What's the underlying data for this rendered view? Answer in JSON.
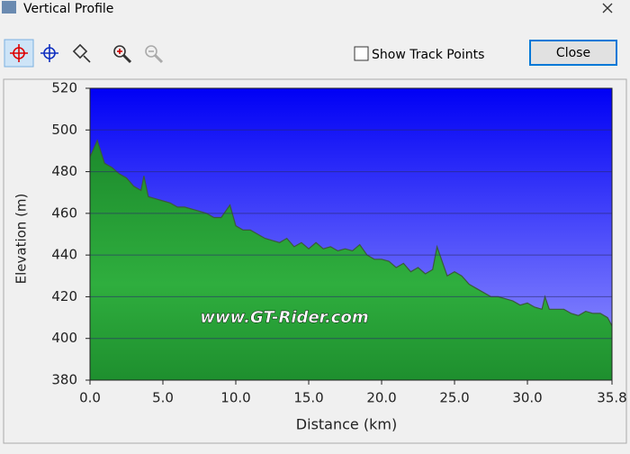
{
  "window": {
    "title": "Vertical Profile",
    "checkbox_label": "Show Track Points",
    "button_label": "Close"
  },
  "chart_data": {
    "type": "area",
    "x_label": "Distance  (km)",
    "y_label": "Elevation (m)",
    "annotation": "www.GT-Rider.com",
    "x": [
      0,
      0.5,
      1,
      1.5,
      2,
      2.5,
      3,
      3.5,
      3.7,
      4,
      4.5,
      5,
      5.5,
      6,
      6.5,
      7,
      7.5,
      8,
      8.5,
      9,
      9.6,
      10,
      10.5,
      11,
      11.5,
      12,
      12.5,
      13,
      13.5,
      14,
      14.5,
      15,
      15.5,
      16,
      16.5,
      17,
      17.5,
      18,
      18.5,
      19,
      19.5,
      20,
      20.5,
      21,
      21.5,
      22,
      22.5,
      23,
      23.5,
      23.8,
      24.5,
      25,
      25.5,
      26,
      26.5,
      27,
      27.5,
      28,
      28.5,
      29,
      29.5,
      30,
      30.5,
      31,
      31.2,
      31.5,
      32,
      32.5,
      33,
      33.5,
      34,
      34.5,
      35,
      35.5,
      35.8
    ],
    "values": [
      487,
      495,
      484,
      482,
      479,
      477,
      473,
      471,
      478,
      468,
      467,
      466,
      465,
      463,
      463,
      462,
      461,
      460,
      458,
      458,
      464,
      454,
      452,
      452,
      450,
      448,
      447,
      446,
      448,
      444,
      446,
      443,
      446,
      443,
      444,
      442,
      443,
      442,
      445,
      440,
      438,
      438,
      437,
      434,
      436,
      432,
      434,
      431,
      433,
      444,
      430,
      432,
      430,
      426,
      424,
      422,
      420,
      420,
      419,
      418,
      416,
      417,
      415,
      414,
      420,
      414,
      414,
      414,
      412,
      411,
      413,
      412,
      412,
      410,
      406
    ],
    "xlim": [
      0,
      35.8
    ],
    "ylim": [
      380,
      520
    ],
    "xticks": [
      {
        "value": 0,
        "label": "0.0"
      },
      {
        "value": 5,
        "label": "5.0"
      },
      {
        "value": 10,
        "label": "10.0"
      },
      {
        "value": 15,
        "label": "15.0"
      },
      {
        "value": 20,
        "label": "20.0"
      },
      {
        "value": 25,
        "label": "25.0"
      },
      {
        "value": 30,
        "label": "30.0"
      },
      35.8
    ],
    "yticks": [
      380,
      400,
      420,
      440,
      460,
      480,
      500,
      520
    ],
    "grid": true,
    "color": "#2a9a3a"
  }
}
